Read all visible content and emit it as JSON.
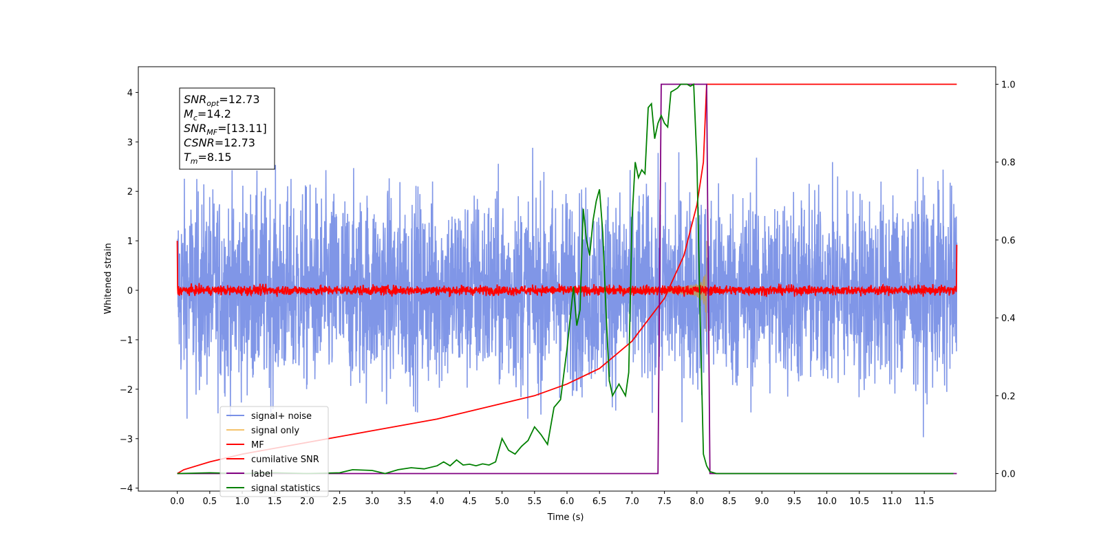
{
  "chart_data": {
    "type": "line",
    "xlabel": "Time (s)",
    "ylabel": "Whitened strain",
    "xlim": [
      -0.6,
      12.6
    ],
    "ylim": [
      -4.06,
      4.52
    ],
    "y2lim": [
      -0.045,
      1.045
    ],
    "x_ticks": [
      "0.0",
      "0.5",
      "1.0",
      "1.5",
      "2.0",
      "2.5",
      "3.0",
      "3.5",
      "4.0",
      "4.5",
      "5.0",
      "5.5",
      "6.0",
      "6.5",
      "7.0",
      "7.5",
      "8.0",
      "8.5",
      "9.0",
      "9.5",
      "10.0",
      "10.5",
      "11.0",
      "11.5"
    ],
    "y_ticks": [
      "−4",
      "−3",
      "−2",
      "−1",
      "0",
      "1",
      "2",
      "3",
      "4"
    ],
    "y2_ticks": [
      "0.0",
      "0.2",
      "0.4",
      "0.6",
      "0.8",
      "1.0"
    ],
    "grid": false,
    "legend_position": "lower-left",
    "info_box": [
      {
        "main": "SNR",
        "sub": "opt",
        "rest": "=12.73"
      },
      {
        "main": "M",
        "sub": "c",
        "rest": "=14.2"
      },
      {
        "main": "SNR",
        "sub": "MF",
        "rest": "=[13.11]"
      },
      {
        "main": "CSNR",
        "sub": "",
        "rest": "=12.73"
      },
      {
        "main": "T",
        "sub": "m",
        "rest": "=8.15"
      }
    ],
    "series": [
      {
        "name": "signal+ noise",
        "color": "#7990e6",
        "axis": "left",
        "kind": "noise",
        "x_range": [
          0.0,
          12.0
        ],
        "noise_sigma": 1.0,
        "peak_range": [
          -3.6,
          4.2
        ]
      },
      {
        "name": "signal only",
        "color": "#f5c26b",
        "axis": "left",
        "kind": "chirp",
        "x_range": [
          0.0,
          8.15
        ],
        "peak_amplitude": 1.0
      },
      {
        "name": "MF",
        "color": "#ff0000",
        "axis": "left",
        "kind": "noise",
        "x_range": [
          0.0,
          12.0
        ],
        "noise_sigma": 0.05,
        "edge_values": [
          1.0,
          0.92
        ]
      },
      {
        "name": "cumilative SNR",
        "color": "#ff0000",
        "axis": "right",
        "kind": "line",
        "x": [
          0.0,
          0.1,
          0.5,
          1.0,
          2.0,
          3.0,
          4.0,
          5.0,
          5.5,
          6.0,
          6.5,
          7.0,
          7.5,
          7.8,
          8.0,
          8.1,
          8.15,
          12.0
        ],
        "y": [
          0.0,
          0.01,
          0.03,
          0.05,
          0.08,
          0.11,
          0.14,
          0.18,
          0.2,
          0.23,
          0.27,
          0.34,
          0.45,
          0.56,
          0.69,
          0.8,
          1.0,
          1.0
        ]
      },
      {
        "name": "label",
        "color": "#800080",
        "axis": "right",
        "kind": "step",
        "x": [
          0.0,
          7.4,
          7.45,
          8.15,
          8.2,
          12.0
        ],
        "y": [
          0.0,
          0.0,
          1.0,
          1.0,
          0.0,
          0.0
        ]
      },
      {
        "name": "signal statistics",
        "color": "#008000",
        "axis": "right",
        "kind": "line",
        "x": [
          0.0,
          0.5,
          1.0,
          1.5,
          2.0,
          2.5,
          2.7,
          3.0,
          3.2,
          3.4,
          3.6,
          3.8,
          4.0,
          4.1,
          4.2,
          4.3,
          4.4,
          4.5,
          4.6,
          4.7,
          4.8,
          4.9,
          5.0,
          5.1,
          5.2,
          5.3,
          5.4,
          5.5,
          5.6,
          5.7,
          5.8,
          5.9,
          6.0,
          6.1,
          6.15,
          6.2,
          6.25,
          6.3,
          6.35,
          6.4,
          6.45,
          6.5,
          6.55,
          6.6,
          6.65,
          6.7,
          6.8,
          6.9,
          6.95,
          7.0,
          7.05,
          7.1,
          7.15,
          7.2,
          7.25,
          7.3,
          7.35,
          7.4,
          7.45,
          7.5,
          7.55,
          7.6,
          7.65,
          7.7,
          7.75,
          7.8,
          7.85,
          7.9,
          7.95,
          8.0,
          8.05,
          8.1,
          8.15,
          8.2,
          8.3,
          8.5,
          9.0,
          10.0,
          11.0,
          11.95
        ],
        "y": [
          0.0,
          0.002,
          0.0,
          0.002,
          0.0,
          0.002,
          0.01,
          0.008,
          0.0,
          0.01,
          0.015,
          0.012,
          0.02,
          0.03,
          0.02,
          0.035,
          0.022,
          0.024,
          0.02,
          0.025,
          0.022,
          0.03,
          0.09,
          0.06,
          0.05,
          0.07,
          0.085,
          0.12,
          0.1,
          0.075,
          0.17,
          0.19,
          0.32,
          0.48,
          0.38,
          0.42,
          0.68,
          0.6,
          0.56,
          0.65,
          0.7,
          0.73,
          0.62,
          0.42,
          0.24,
          0.2,
          0.23,
          0.2,
          0.26,
          0.65,
          0.8,
          0.76,
          0.78,
          0.77,
          0.94,
          0.95,
          0.86,
          0.9,
          0.92,
          0.9,
          0.89,
          0.98,
          0.985,
          0.99,
          1.0,
          1.0,
          1.0,
          0.995,
          1.0,
          0.8,
          0.4,
          0.05,
          0.02,
          0.005,
          0.0,
          0.0,
          0.0,
          0.0,
          0.0,
          0.0
        ]
      }
    ]
  }
}
